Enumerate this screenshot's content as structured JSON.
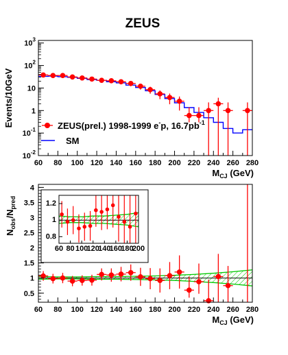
{
  "title": "ZEUS",
  "colors": {
    "data": "#ff0000",
    "sm": "#0000ff",
    "band": "#00c800",
    "axis": "#000000"
  },
  "chart_data": [
    {
      "type": "scatter",
      "xlabel_main": "M",
      "xlabel_sub": "CJ",
      "xlabel_unit": " (GeV)",
      "ylabel": "Events/10GeV",
      "yscale": "log",
      "xlim": [
        60,
        280
      ],
      "ylim": [
        0.01,
        1300
      ],
      "x_ticks": [
        60,
        80,
        100,
        120,
        140,
        160,
        180,
        200,
        220,
        240,
        260,
        280
      ],
      "y_ticks": [
        {
          "v": 0.01,
          "base": "10",
          "exp": "-2"
        },
        {
          "v": 0.1,
          "base": "10",
          "exp": "-1"
        },
        {
          "v": 1,
          "base": "1",
          "exp": ""
        },
        {
          "v": 10,
          "base": "10",
          "exp": ""
        },
        {
          "v": 100,
          "base": "10",
          "exp": "2"
        },
        {
          "v": 1000,
          "base": "10",
          "exp": "3"
        }
      ],
      "legend": {
        "position": "bottom-left",
        "data_text": "ZEUS(prel.) 1998-1999 e",
        "data_sup1": "-",
        "data_text2": "p, 16.7pb",
        "data_sup2": "-1",
        "sm_text": "SM"
      },
      "series": [
        {
          "name": "ZEUS(prel.) 1998-1999 e-p, 16.7pb-1",
          "kind": "points",
          "x": [
            65,
            75,
            85,
            95,
            105,
            115,
            125,
            135,
            145,
            155,
            165,
            175,
            185,
            195,
            205,
            215,
            225,
            235,
            245,
            255,
            275
          ],
          "y": [
            38,
            36,
            36,
            31,
            28,
            25,
            22,
            21,
            19,
            16,
            12,
            8.5,
            5.5,
            3.8,
            2.6,
            0.6,
            0.6,
            1.0,
            2.0,
            1.0,
            1.0
          ],
          "err_lo": [
            6,
            6,
            6,
            5,
            5,
            5,
            4.5,
            4.5,
            4.3,
            4,
            3.5,
            2.9,
            2.3,
            1.9,
            1.6,
            0.3,
            0.3,
            0.99,
            1.99,
            0.99,
            0.99
          ],
          "err_hi": [
            6,
            6,
            6,
            5,
            5,
            5,
            4.5,
            4.5,
            4.3,
            4,
            3.5,
            2.9,
            2.3,
            1.9,
            1.6,
            0.8,
            0.8,
            1.3,
            1.7,
            1.3,
            1.3
          ]
        },
        {
          "name": "SM",
          "kind": "step",
          "edges": [
            60,
            70,
            80,
            90,
            100,
            110,
            120,
            130,
            140,
            150,
            160,
            170,
            180,
            190,
            200,
            210,
            220,
            230,
            240,
            250,
            260,
            270,
            280
          ],
          "values": [
            33,
            34,
            32,
            30,
            27,
            24,
            22,
            19,
            17,
            13.5,
            10.5,
            7.6,
            5.2,
            3.4,
            2.2,
            1.35,
            0.82,
            0.48,
            0.3,
            0.16,
            0.1,
            0.14
          ]
        }
      ]
    },
    {
      "type": "scatter",
      "xlabel_main": "M",
      "xlabel_sub": "CJ",
      "xlabel_unit": " (GeV)",
      "ylabel_main": "N",
      "ylabel_sub1": "obs",
      "ylabel_mid": "/N",
      "ylabel_sub2": "pred",
      "xlim": [
        60,
        280
      ],
      "ylim": [
        0.2,
        4.1
      ],
      "x_ticks": [
        60,
        80,
        100,
        120,
        140,
        160,
        180,
        200,
        220,
        240,
        260,
        280
      ],
      "y_ticks": [
        0.5,
        1,
        1.5,
        2,
        2.5,
        3,
        3.5,
        4
      ],
      "series": [
        {
          "name": "ratio",
          "kind": "points",
          "x": [
            65,
            75,
            85,
            95,
            105,
            115,
            125,
            135,
            145,
            155,
            165,
            175,
            185,
            195,
            205,
            215,
            225,
            235,
            245,
            255,
            275
          ],
          "y": [
            1.07,
            0.98,
            1.0,
            0.9,
            0.92,
            0.93,
            1.12,
            1.1,
            1.13,
            1.18,
            1.04,
            0.98,
            0.92,
            1.08,
            1.2,
            0.6,
            0.88,
            0.25,
            1.05,
            0.75,
            4.1
          ],
          "err_lo": [
            0.16,
            0.16,
            0.17,
            0.17,
            0.17,
            0.18,
            0.2,
            0.22,
            0.24,
            0.27,
            0.3,
            0.35,
            0.4,
            0.45,
            0.55,
            0.25,
            0.4,
            0.25,
            0.85,
            0.55,
            0.0
          ],
          "err_hi": [
            0.16,
            0.16,
            0.17,
            0.17,
            0.17,
            0.18,
            0.2,
            0.22,
            0.24,
            0.27,
            0.3,
            0.35,
            0.4,
            0.45,
            0.55,
            0.45,
            0.6,
            0.7,
            0.75,
            0.65,
            0.0
          ]
        },
        {
          "name": "SM uncertainty band",
          "kind": "band",
          "x": [
            60,
            80,
            100,
            120,
            140,
            160,
            180,
            200,
            220,
            240,
            260,
            280
          ],
          "upper": [
            1.05,
            1.04,
            1.04,
            1.05,
            1.05,
            1.06,
            1.07,
            1.09,
            1.12,
            1.16,
            1.21,
            1.27
          ],
          "lower": [
            0.96,
            0.97,
            0.97,
            0.96,
            0.96,
            0.95,
            0.94,
            0.92,
            0.89,
            0.85,
            0.8,
            0.74
          ]
        }
      ],
      "inset": {
        "xlim": [
          60,
          200
        ],
        "ylim": [
          0.72,
          1.3
        ],
        "x_ticks": [
          60,
          80,
          100,
          120,
          140,
          160,
          180,
          200
        ],
        "y_ticks": [
          0.8,
          1,
          1.2
        ]
      }
    }
  ]
}
